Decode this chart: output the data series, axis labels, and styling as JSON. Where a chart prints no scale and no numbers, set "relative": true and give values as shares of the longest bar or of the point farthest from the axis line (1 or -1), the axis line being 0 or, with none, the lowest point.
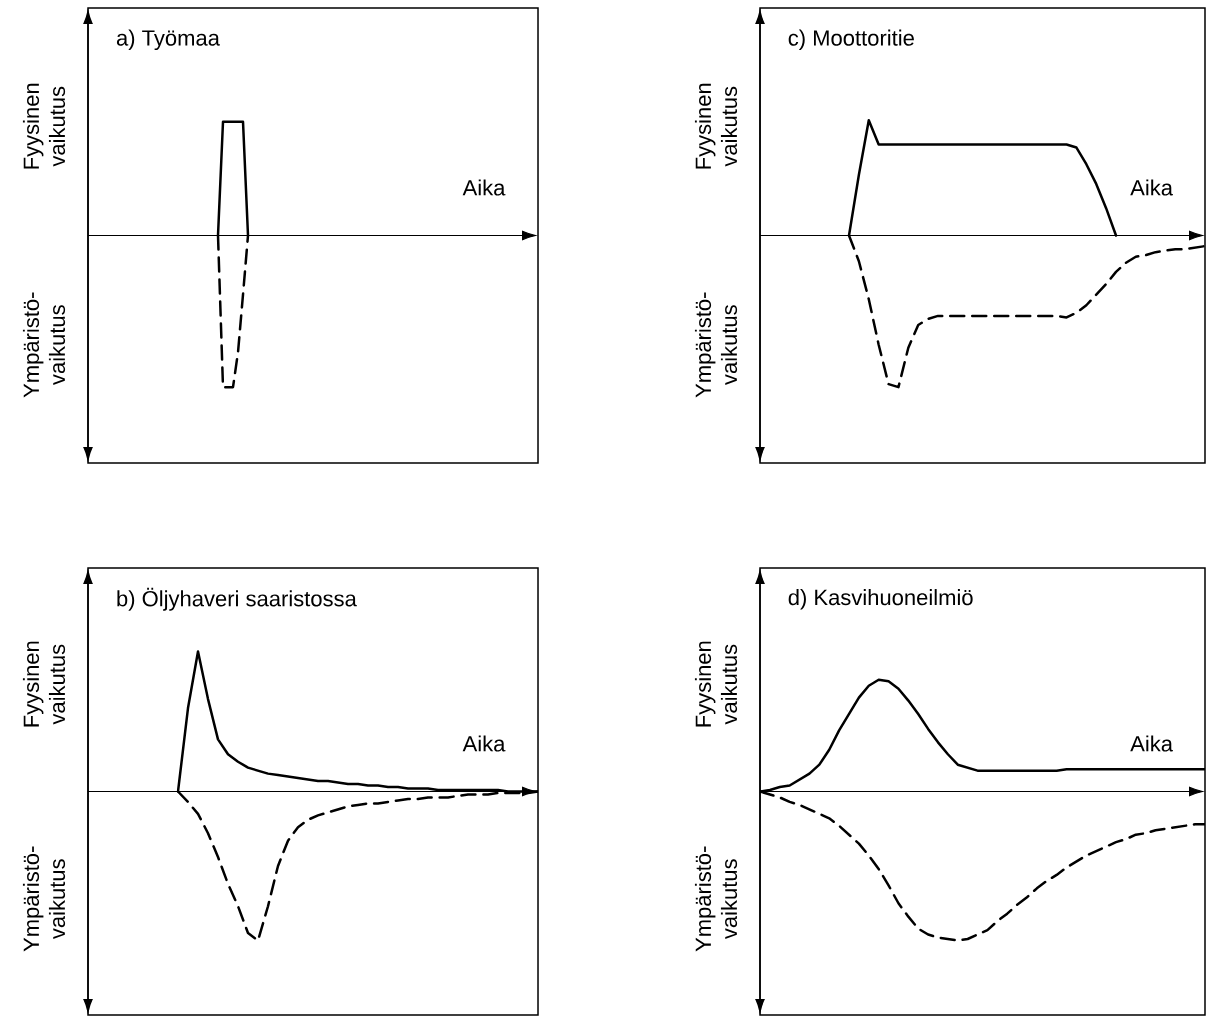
{
  "chart_data": [
    {
      "type": "line",
      "relative": true,
      "title": "a) Työmaa",
      "xlabel": "Aika",
      "annotations": [
        "Fyysinen vaikutus",
        "Ympäristö- vaikutus"
      ],
      "categories": [
        null,
        null,
        null,
        null,
        null,
        null,
        null,
        null,
        null,
        null,
        null,
        null,
        null,
        null,
        null,
        null,
        null,
        null,
        null,
        null,
        null,
        null,
        null,
        null,
        null,
        null,
        null,
        null,
        null,
        null,
        null,
        null,
        null,
        null,
        null,
        null,
        null,
        null,
        null,
        null,
        null,
        null,
        null,
        null,
        null,
        null,
        null,
        null,
        null,
        null,
        null,
        null,
        null,
        null,
        null,
        null,
        null,
        null,
        null,
        null,
        null,
        null,
        null,
        null,
        null,
        null,
        null,
        null,
        null,
        null,
        null,
        null,
        null,
        null,
        null,
        null,
        null,
        null,
        null,
        null,
        null,
        null,
        null,
        null,
        null,
        null,
        null,
        null,
        null,
        null,
        null
      ],
      "series": [
        {
          "color": "#000000",
          "line_style": "solid",
          "values": [
            null,
            null,
            null,
            null,
            null,
            null,
            null,
            null,
            null,
            null,
            null,
            null,
            null,
            null,
            null,
            null,
            null,
            null,
            null,
            null,
            null,
            null,
            null,
            null,
            null,
            null,
            0,
            0.75,
            0.75,
            0.75,
            0.75,
            0.75,
            0,
            null,
            null,
            null,
            null,
            null,
            null,
            null,
            null,
            null,
            null,
            null,
            null,
            null,
            null,
            null,
            null,
            null,
            null,
            null,
            null,
            null,
            null,
            null,
            null,
            null,
            null,
            null,
            null,
            null,
            null,
            null,
            null,
            null,
            null,
            null,
            null,
            null,
            null,
            null,
            null,
            null,
            null,
            null,
            null,
            null,
            null,
            null,
            null,
            null,
            null,
            null,
            null,
            null,
            null,
            null,
            null,
            null,
            null
          ]
        },
        {
          "color": "#000000",
          "line_style": "dashed",
          "values": [
            null,
            null,
            null,
            null,
            null,
            null,
            null,
            null,
            null,
            null,
            null,
            null,
            null,
            null,
            null,
            null,
            null,
            null,
            null,
            null,
            null,
            null,
            null,
            null,
            null,
            null,
            0,
            -1,
            -1,
            -1,
            -0.77,
            -0.39,
            0,
            null,
            null,
            null,
            null,
            null,
            null,
            null,
            null,
            null,
            null,
            null,
            null,
            null,
            null,
            null,
            null,
            null,
            null,
            null,
            null,
            null,
            null,
            null,
            null,
            null,
            null,
            null,
            null,
            null,
            null,
            null,
            null,
            null,
            null,
            null,
            null,
            null,
            null,
            null,
            null,
            null,
            null,
            null,
            null,
            null,
            null,
            null,
            null,
            null,
            null,
            null,
            null,
            null,
            null,
            null,
            null,
            null,
            null
          ]
        }
      ]
    },
    {
      "type": "line",
      "relative": true,
      "title": "c) Moottoritie",
      "xlabel": "Aika",
      "annotations": [
        "Fyysinen vaikutus",
        "Ympäristö- vaikutus"
      ],
      "categories": [
        null,
        null,
        null,
        null,
        null,
        null,
        null,
        null,
        null,
        null,
        null,
        null,
        null,
        null,
        null,
        null,
        null,
        null,
        null,
        null,
        null,
        null,
        null,
        null,
        null,
        null,
        null,
        null,
        null,
        null,
        null,
        null,
        null,
        null,
        null,
        null,
        null,
        null,
        null,
        null,
        null,
        null,
        null,
        null,
        null,
        null
      ],
      "series": [
        {
          "color": "#000000",
          "line_style": "solid",
          "values": [
            null,
            null,
            null,
            null,
            null,
            null,
            null,
            null,
            null,
            0,
            0.4,
            0.76,
            0.6,
            0.6,
            0.6,
            0.6,
            0.6,
            0.6,
            0.6,
            0.6,
            0.6,
            0.6,
            0.6,
            0.6,
            0.6,
            0.6,
            0.6,
            0.6,
            0.6,
            0.6,
            0.6,
            0.6,
            0.58,
            0.47,
            0.34,
            0.18,
            0,
            null,
            null,
            null,
            null,
            null,
            null,
            null,
            null,
            null
          ]
        },
        {
          "color": "#000000",
          "line_style": "dashed",
          "values": [
            null,
            null,
            null,
            null,
            null,
            null,
            null,
            null,
            null,
            0,
            -0.17,
            -0.42,
            -0.72,
            -0.98,
            -1,
            -0.74,
            -0.59,
            -0.55,
            -0.53,
            -0.53,
            -0.53,
            -0.53,
            -0.53,
            -0.53,
            -0.53,
            -0.53,
            -0.53,
            -0.53,
            -0.53,
            -0.53,
            -0.53,
            -0.54,
            -0.51,
            -0.46,
            -0.39,
            -0.32,
            -0.24,
            -0.18,
            -0.14,
            -0.13,
            -0.11,
            -0.1,
            -0.09,
            -0.09,
            -0.08,
            -0.07
          ]
        }
      ]
    },
    {
      "type": "line",
      "relative": true,
      "title": "b) Öljyhaveri saaristossa",
      "xlabel": "Aika",
      "annotations": [
        "Fyysinen vaikutus",
        "Ympäristö- vaikutus"
      ],
      "categories": [
        null,
        null,
        null,
        null,
        null,
        null,
        null,
        null,
        null,
        null,
        null,
        null,
        null,
        null,
        null,
        null,
        null,
        null,
        null,
        null,
        null,
        null,
        null,
        null,
        null,
        null,
        null,
        null,
        null,
        null,
        null,
        null,
        null,
        null,
        null,
        null,
        null,
        null,
        null,
        null,
        null,
        null,
        null,
        null,
        null,
        null
      ],
      "series": [
        {
          "color": "#000000",
          "line_style": "solid",
          "values": [
            null,
            null,
            null,
            null,
            null,
            null,
            null,
            null,
            null,
            0,
            0.56,
            0.94,
            0.62,
            0.35,
            0.25,
            0.2,
            0.16,
            0.14,
            0.12,
            0.11,
            0.1,
            0.09,
            0.08,
            0.07,
            0.07,
            0.06,
            0.05,
            0.05,
            0.04,
            0.04,
            0.03,
            0.03,
            0.02,
            0.02,
            0.02,
            0.01,
            0.01,
            0.01,
            0.01,
            0.01,
            0.01,
            0.01,
            0,
            0,
            0,
            0
          ]
        },
        {
          "color": "#000000",
          "line_style": "dashed",
          "values": [
            null,
            null,
            null,
            null,
            null,
            null,
            null,
            null,
            null,
            0,
            -0.07,
            -0.15,
            -0.28,
            -0.44,
            -0.62,
            -0.77,
            -0.95,
            -1,
            -0.77,
            -0.5,
            -0.33,
            -0.24,
            -0.19,
            -0.16,
            -0.14,
            -0.12,
            -0.1,
            -0.09,
            -0.08,
            -0.08,
            -0.07,
            -0.06,
            -0.05,
            -0.05,
            -0.04,
            -0.04,
            -0.04,
            -0.03,
            -0.02,
            -0.02,
            -0.02,
            -0.01,
            -0.01,
            -0.01,
            -0.01,
            0
          ]
        }
      ]
    },
    {
      "type": "line",
      "relative": true,
      "title": "d) Kasvihuoneilmiö",
      "xlabel": "Aika",
      "annotations": [
        "Fyysinen vaikutus",
        "Ympäristö- vaikutus"
      ],
      "categories": [
        null,
        null,
        null,
        null,
        null,
        null,
        null,
        null,
        null,
        null,
        null,
        null,
        null,
        null,
        null,
        null,
        null,
        null,
        null,
        null,
        null,
        null,
        null,
        null,
        null,
        null,
        null,
        null,
        null,
        null,
        null,
        null,
        null,
        null,
        null,
        null,
        null,
        null,
        null,
        null,
        null,
        null,
        null,
        null,
        null,
        null
      ],
      "series": [
        {
          "color": "#000000",
          "line_style": "solid",
          "values": [
            0,
            0.01,
            0.03,
            0.04,
            0.08,
            0.12,
            0.18,
            0.28,
            0.41,
            0.52,
            0.63,
            0.71,
            0.75,
            0.74,
            0.69,
            0.61,
            0.52,
            0.42,
            0.33,
            0.25,
            0.18,
            0.16,
            0.14,
            0.14,
            0.14,
            0.14,
            0.14,
            0.14,
            0.14,
            0.14,
            0.14,
            0.15,
            0.15,
            0.15,
            0.15,
            0.15,
            0.15,
            0.15,
            0.15,
            0.15,
            0.15,
            0.15,
            0.15,
            0.15,
            0.15,
            0.15
          ]
        },
        {
          "color": "#000000",
          "line_style": "dashed",
          "values": [
            0,
            -0.02,
            -0.04,
            -0.07,
            -0.09,
            -0.12,
            -0.15,
            -0.18,
            -0.23,
            -0.29,
            -0.35,
            -0.43,
            -0.52,
            -0.63,
            -0.75,
            -0.84,
            -0.92,
            -0.96,
            -0.98,
            -0.99,
            -1,
            -0.99,
            -0.96,
            -0.93,
            -0.87,
            -0.82,
            -0.76,
            -0.71,
            -0.65,
            -0.6,
            -0.56,
            -0.51,
            -0.47,
            -0.43,
            -0.4,
            -0.37,
            -0.34,
            -0.32,
            -0.29,
            -0.28,
            -0.26,
            -0.25,
            -0.24,
            -0.23,
            -0.22,
            -0.22
          ]
        }
      ]
    }
  ]
}
